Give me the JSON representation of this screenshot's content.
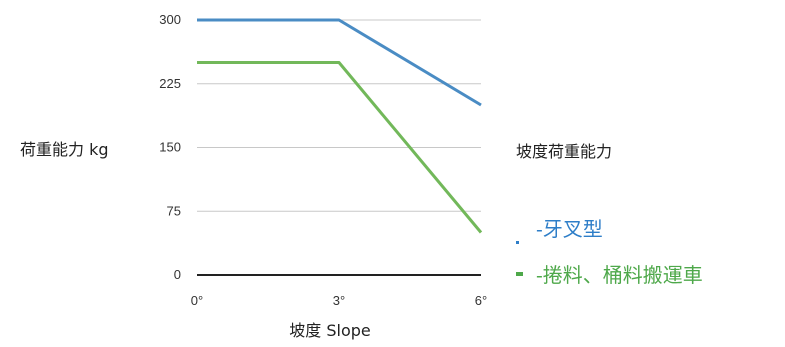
{
  "chart_data": {
    "type": "line",
    "title": "",
    "xlabel": "坡度 Slope",
    "ylabel": "荷重能力 kg",
    "x": [
      "0°",
      "3°",
      "6°"
    ],
    "xlim": [
      0,
      6
    ],
    "ylim": [
      0,
      300
    ],
    "yticks": [
      0,
      75,
      150,
      225,
      300
    ],
    "yticklabels": [
      "0",
      "75",
      "150",
      "225",
      "300"
    ],
    "grid": true,
    "legend": {
      "title": "坡度荷重能力",
      "placement": "right"
    },
    "series": [
      {
        "name": "-牙叉型",
        "color": "#4a8cc4",
        "legend_color": "#2e7ec8",
        "points": [
          [
            0,
            300
          ],
          [
            3,
            300
          ],
          [
            6,
            200
          ]
        ]
      },
      {
        "name": "-捲料、桶料搬運車",
        "color": "#72b85a",
        "legend_color": "#4ea84a",
        "points": [
          [
            0,
            250
          ],
          [
            3,
            250
          ],
          [
            6,
            50
          ]
        ]
      }
    ]
  }
}
